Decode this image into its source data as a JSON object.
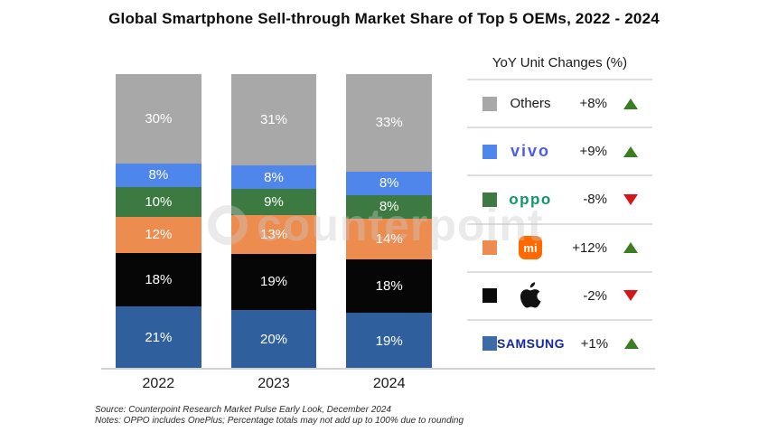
{
  "title": "Global Smartphone Sell-through Market Share of Top 5 OEMs, 2022 - 2024",
  "watermark_text": "counterpoint",
  "chart_data": {
    "type": "bar",
    "stacked": true,
    "categories": [
      "2022",
      "2023",
      "2024"
    ],
    "series": [
      {
        "name": "Samsung",
        "color": "#2f5f9d",
        "values": [
          21,
          20,
          19
        ]
      },
      {
        "name": "Apple",
        "color": "#060606",
        "values": [
          18,
          19,
          18
        ]
      },
      {
        "name": "Xiaomi",
        "color": "#ed8c4f",
        "values": [
          12,
          13,
          14
        ]
      },
      {
        "name": "OPPO",
        "color": "#3d7a41",
        "values": [
          10,
          9,
          8
        ]
      },
      {
        "name": "vivo",
        "color": "#4f86ec",
        "values": [
          8,
          8,
          8
        ]
      },
      {
        "name": "Others",
        "color": "#a8a8a8",
        "values": [
          30,
          31,
          33
        ]
      }
    ],
    "value_suffix": "%",
    "label_color": "#ffffff",
    "ylim": [
      0,
      100
    ],
    "grid": false,
    "legend_position": "right"
  },
  "legend": {
    "title": "YoY Unit Changes (%)",
    "up_color": "#3a7d23",
    "down_color": "#d51717",
    "rows": [
      {
        "brand": "others",
        "label": "Others",
        "swatch": "#a8a8a8",
        "change": "+8%",
        "direction": "up"
      },
      {
        "brand": "vivo",
        "label": "vivo",
        "swatch": "#4f86ec",
        "change": "+9%",
        "direction": "up"
      },
      {
        "brand": "oppo",
        "label": "oppo",
        "swatch": "#3d7a41",
        "change": "-8%",
        "direction": "down"
      },
      {
        "brand": "xiaomi",
        "label": "mi",
        "swatch": "#ed8c4f",
        "change": "+12%",
        "direction": "up"
      },
      {
        "brand": "apple",
        "label": "Apple",
        "swatch": "#0a0a0a",
        "change": "-2%",
        "direction": "down"
      },
      {
        "brand": "samsung",
        "label": "SAMSUNG",
        "swatch": "#3d6ba5",
        "change": "+1%",
        "direction": "up"
      }
    ]
  },
  "footer": {
    "line1": "Source: Counterpoint Research Market Pulse Early Look, December 2024",
    "line2": "Notes: OPPO includes OnePlus; Percentage totals may not add up to 100% due to rounding"
  }
}
